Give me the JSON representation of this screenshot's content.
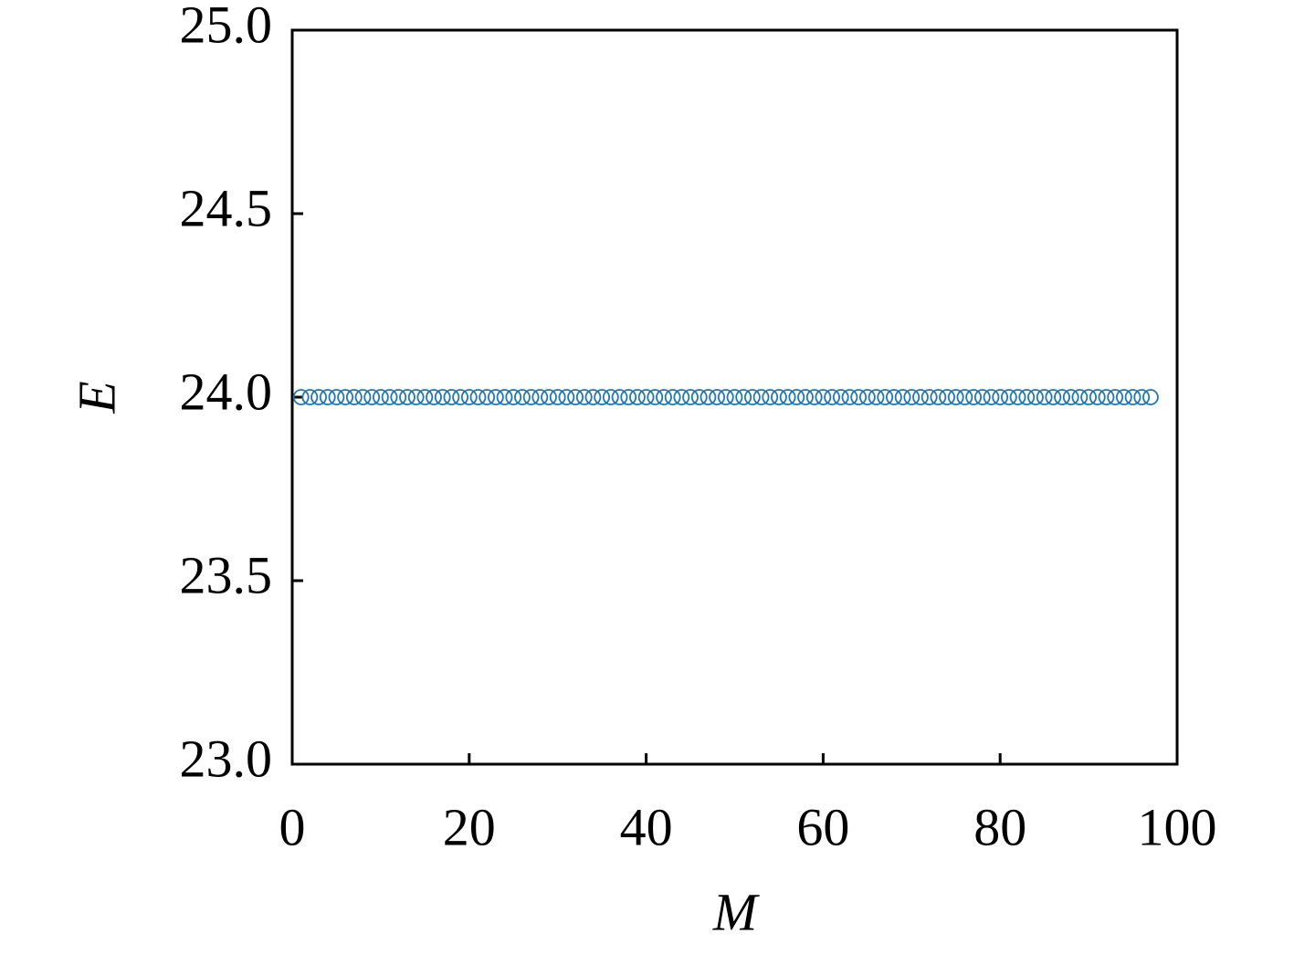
{
  "chart_data": {
    "type": "scatter",
    "xlabel": "M",
    "ylabel": "E",
    "x": [
      1,
      2,
      3,
      4,
      5,
      6,
      7,
      8,
      9,
      10,
      11,
      12,
      13,
      14,
      15,
      16,
      17,
      18,
      19,
      20,
      21,
      22,
      23,
      24,
      25,
      26,
      27,
      28,
      29,
      30,
      31,
      32,
      33,
      34,
      35,
      36,
      37,
      38,
      39,
      40,
      41,
      42,
      43,
      44,
      45,
      46,
      47,
      48,
      49,
      50,
      51,
      52,
      53,
      54,
      55,
      56,
      57,
      58,
      59,
      60,
      61,
      62,
      63,
      64,
      65,
      66,
      67,
      68,
      69,
      70,
      71,
      72,
      73,
      74,
      75,
      76,
      77,
      78,
      79,
      80,
      81,
      82,
      83,
      84,
      85,
      86,
      87,
      88,
      89,
      90,
      91,
      92,
      93,
      94,
      95,
      96,
      97
    ],
    "values": [
      24,
      24,
      24,
      24,
      24,
      24,
      24,
      24,
      24,
      24,
      24,
      24,
      24,
      24,
      24,
      24,
      24,
      24,
      24,
      24,
      24,
      24,
      24,
      24,
      24,
      24,
      24,
      24,
      24,
      24,
      24,
      24,
      24,
      24,
      24,
      24,
      24,
      24,
      24,
      24,
      24,
      24,
      24,
      24,
      24,
      24,
      24,
      24,
      24,
      24,
      24,
      24,
      24,
      24,
      24,
      24,
      24,
      24,
      24,
      24,
      24,
      24,
      24,
      24,
      24,
      24,
      24,
      24,
      24,
      24,
      24,
      24,
      24,
      24,
      24,
      24,
      24,
      24,
      24,
      24,
      24,
      24,
      24,
      24,
      24,
      24,
      24,
      24,
      24,
      24,
      24,
      24,
      24,
      24,
      24,
      24,
      24
    ],
    "color": "#1f77b4",
    "xlim": [
      0,
      100
    ],
    "xticks": [
      0,
      20,
      40,
      60,
      80,
      100
    ],
    "ylim": [
      23,
      25
    ],
    "yticks": [
      {
        "value": 23,
        "label": "23.0"
      },
      {
        "value": 23.5,
        "label": "23.5"
      },
      {
        "value": 24,
        "label": "24.0"
      },
      {
        "value": 24.5,
        "label": "24.5"
      },
      {
        "value": 25,
        "label": "25.0"
      }
    ],
    "grid": false
  }
}
